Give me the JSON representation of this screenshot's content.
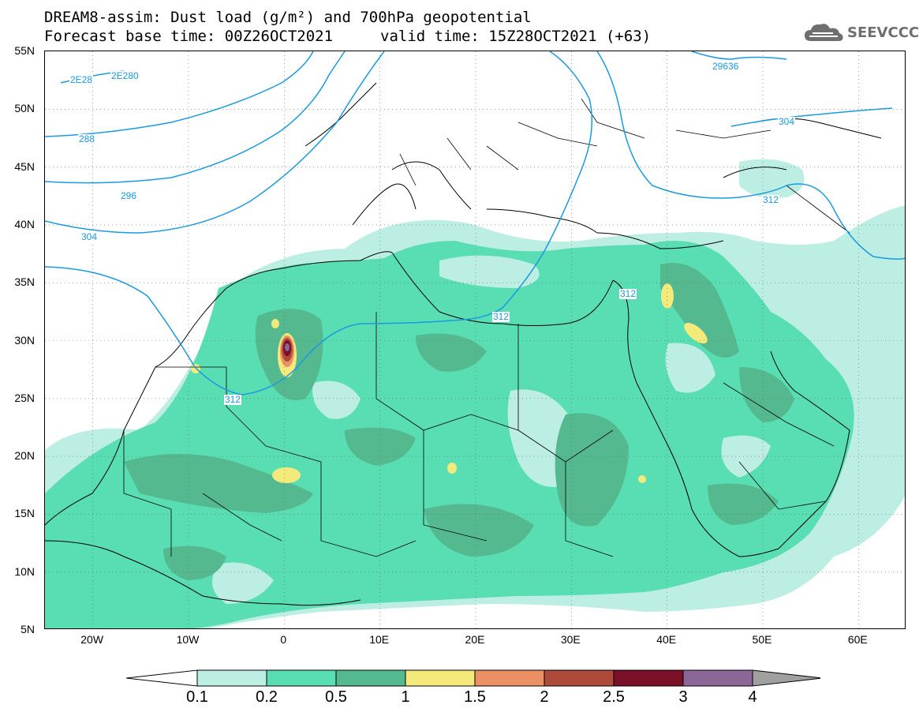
{
  "header": {
    "title_line1": "DREAM8-assim: Dust load (g/m²) and 700hPa geopotential",
    "title_line2": "Forecast base time: 00Z26OCT2021",
    "valid_time": "valid time: 15Z28OCT2021 (+63)",
    "logo_text": "SEEVCCC",
    "logo_icon": "cloud-icon"
  },
  "map": {
    "lat_range": [
      5,
      55
    ],
    "lon_range": [
      -25,
      65
    ],
    "lat_labels": [
      "55N",
      "50N",
      "45N",
      "40N",
      "35N",
      "30N",
      "25N",
      "20N",
      "15N",
      "10N",
      "5N"
    ],
    "lon_labels": [
      "20W",
      "10W",
      "0",
      "10E",
      "20E",
      "30E",
      "40E",
      "50E",
      "60E"
    ],
    "contour_labels": [
      "2E28",
      "2E280",
      "288",
      "296",
      "304",
      "29636",
      "304",
      "312",
      "312",
      "312",
      "312"
    ],
    "grid": "dotted"
  },
  "legend": {
    "labels": [
      "0.1",
      "0.2",
      "0.5",
      "1",
      "1.5",
      "2",
      "2.5",
      "3",
      "4"
    ],
    "colors": [
      "#bdeee3",
      "#59ddb3",
      "#55b98f",
      "#f4ea7c",
      "#eb8f64",
      "#ad4a3a",
      "#7a0f28",
      "#8a6796",
      "#a0a0a0"
    ]
  }
}
